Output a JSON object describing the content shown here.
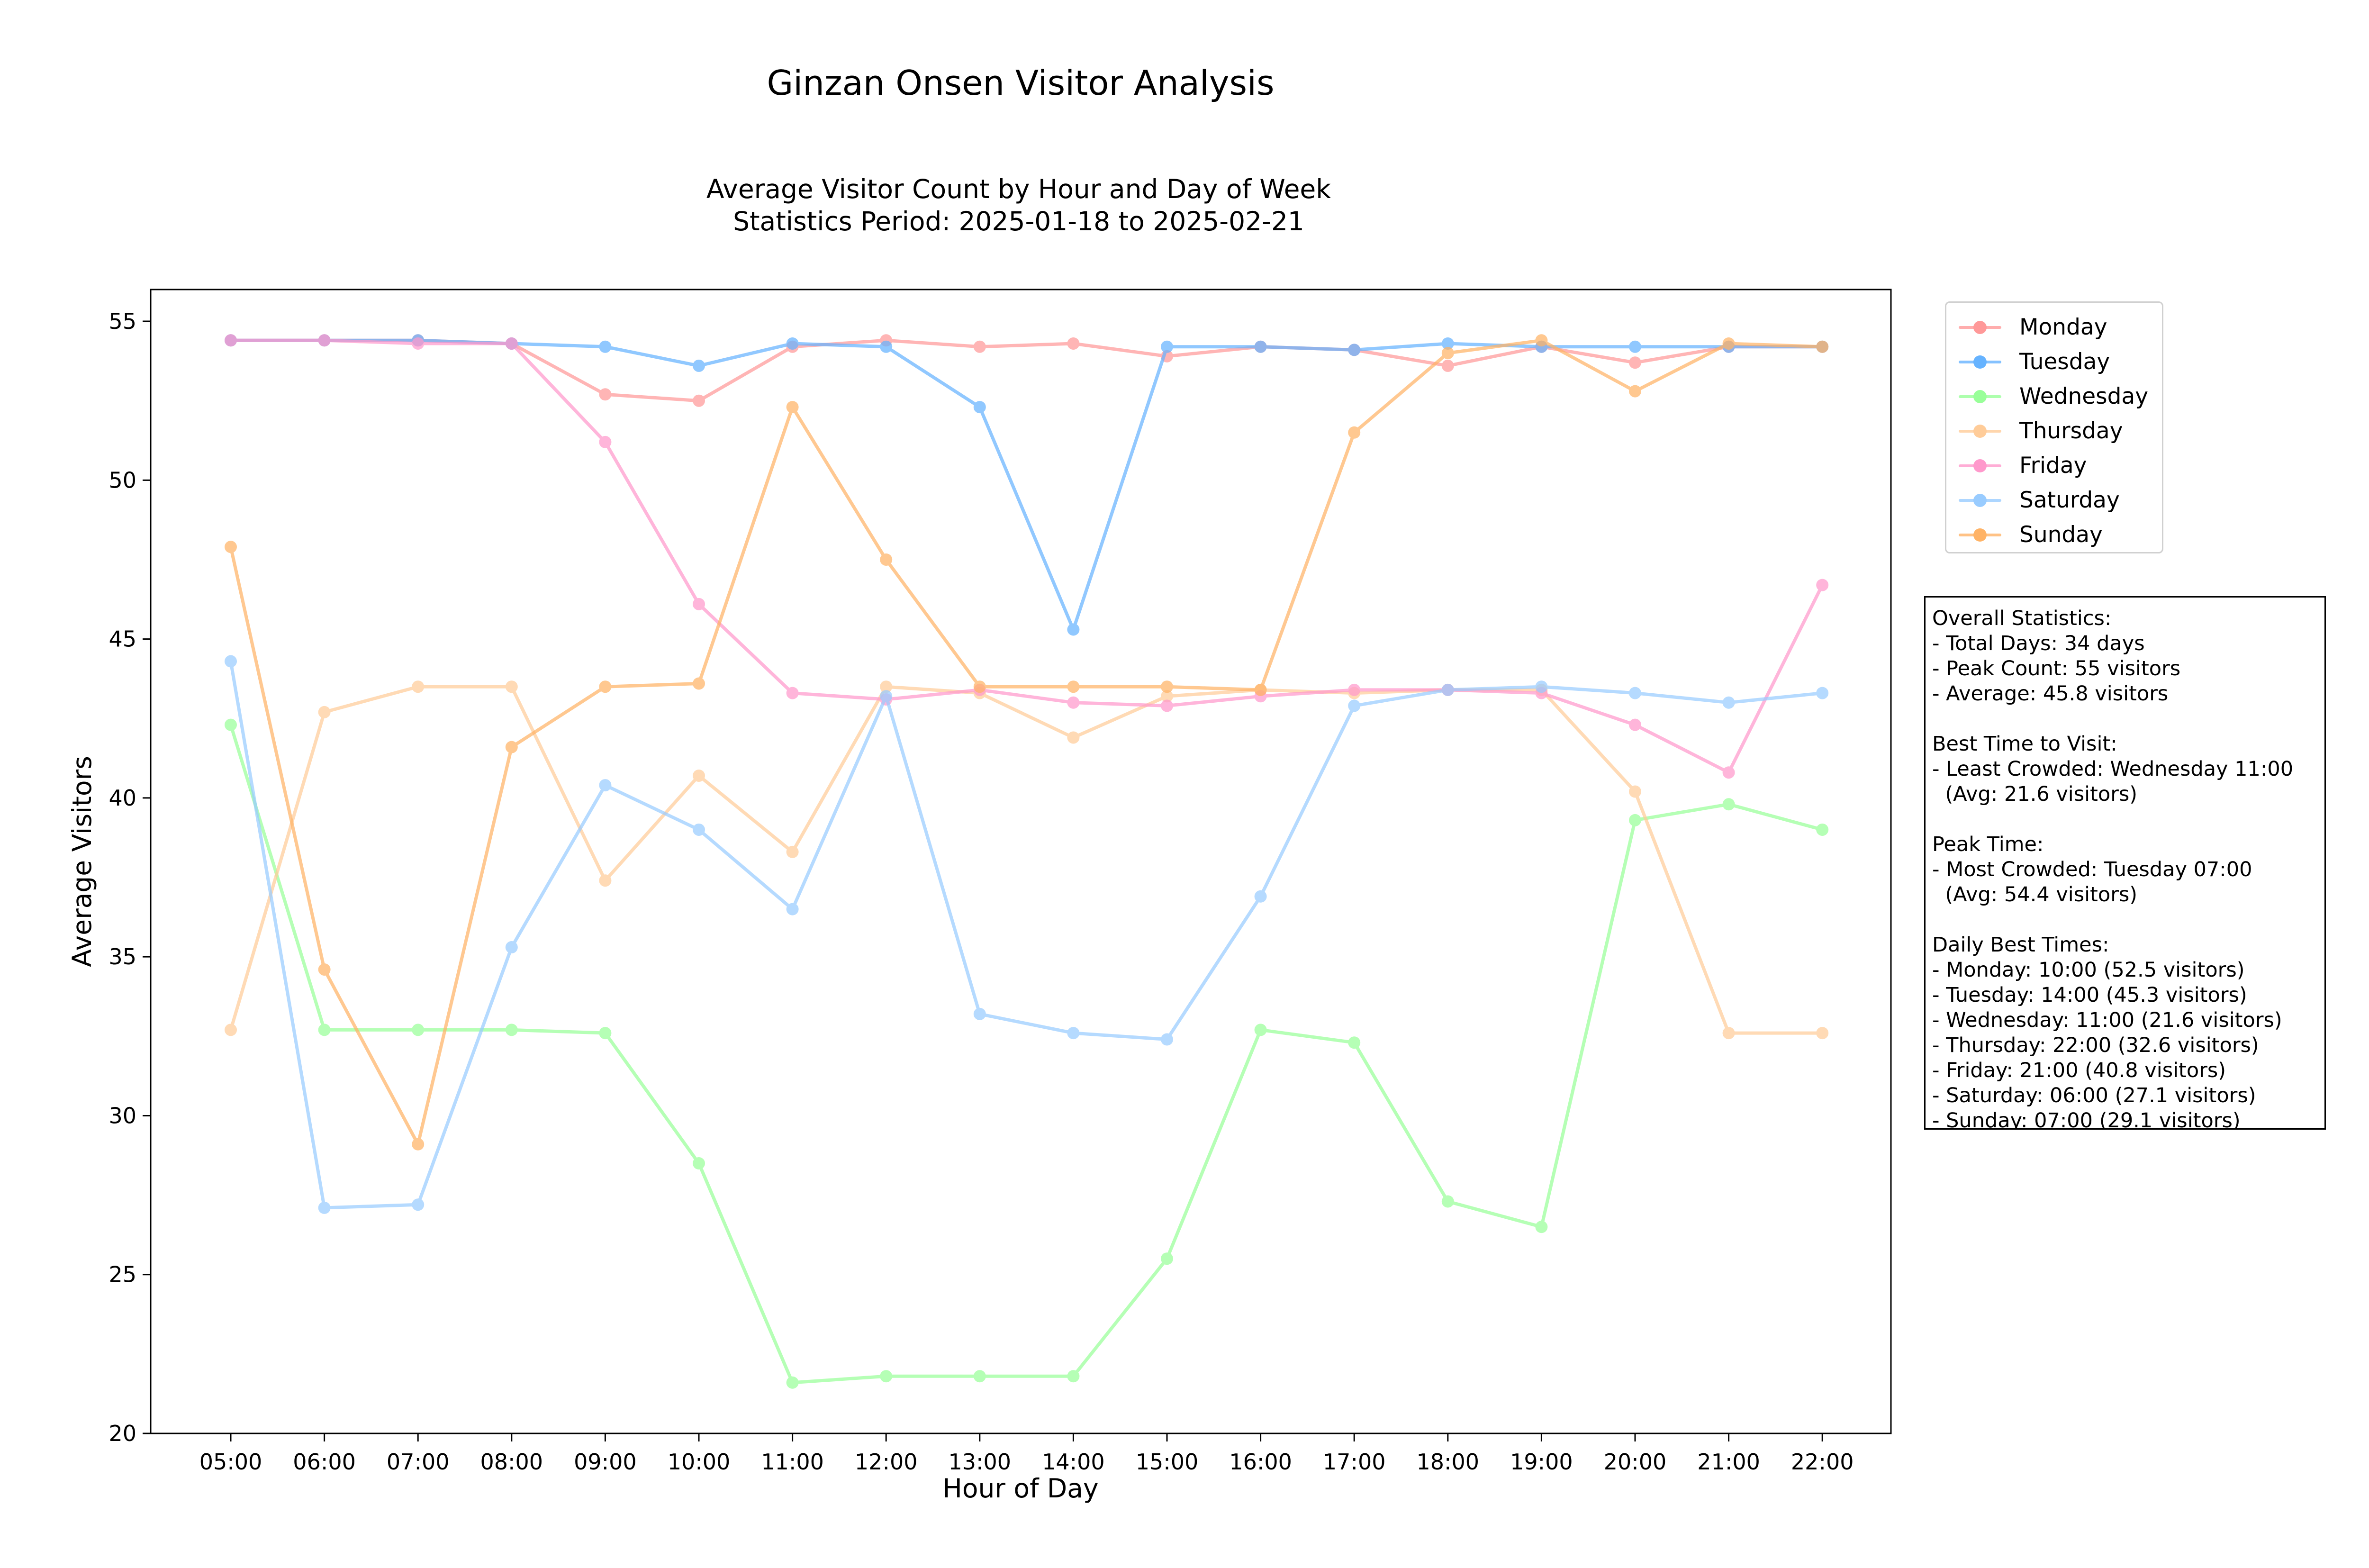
{
  "figure": {
    "suptitle": "Ginzan Onsen Visitor Analysis"
  },
  "chart_data": {
    "type": "line",
    "title": "Average Visitor Count by Hour and Day of Week\nStatistics Period: 2025-01-18 to 2025-02-21",
    "xlabel": "Hour of Day",
    "ylabel": "Average Visitors",
    "ylim": [
      20,
      56
    ],
    "yticks": [
      20,
      25,
      30,
      35,
      40,
      45,
      50,
      55
    ],
    "grid": false,
    "legend_position": "outside-top-right",
    "categories": [
      "05:00",
      "06:00",
      "07:00",
      "08:00",
      "09:00",
      "10:00",
      "11:00",
      "12:00",
      "13:00",
      "14:00",
      "15:00",
      "16:00",
      "17:00",
      "18:00",
      "19:00",
      "20:00",
      "21:00",
      "22:00"
    ],
    "series": [
      {
        "name": "Monday",
        "color": "#ff9999",
        "values": [
          54.4,
          54.4,
          54.4,
          54.3,
          52.7,
          52.5,
          54.2,
          54.4,
          54.2,
          54.3,
          53.9,
          54.2,
          54.1,
          53.6,
          54.2,
          53.7,
          54.2,
          54.2
        ]
      },
      {
        "name": "Tuesday",
        "color": "#66b3ff",
        "values": [
          54.4,
          54.4,
          54.4,
          54.3,
          54.2,
          53.6,
          54.3,
          54.2,
          52.3,
          45.3,
          54.2,
          54.2,
          54.1,
          54.3,
          54.2,
          54.2,
          54.2,
          54.2
        ]
      },
      {
        "name": "Wednesday",
        "color": "#99ff99",
        "values": [
          42.3,
          32.7,
          32.7,
          32.7,
          32.6,
          28.5,
          21.6,
          21.8,
          21.8,
          21.8,
          25.5,
          32.7,
          32.3,
          27.3,
          26.5,
          39.3,
          39.8,
          39.0
        ]
      },
      {
        "name": "Thursday",
        "color": "#ffcc99",
        "values": [
          32.7,
          42.7,
          43.5,
          43.5,
          37.4,
          40.7,
          38.3,
          43.5,
          43.3,
          41.9,
          43.2,
          43.4,
          43.3,
          43.4,
          43.4,
          40.2,
          32.6,
          32.6
        ]
      },
      {
        "name": "Friday",
        "color": "#ff99cc",
        "values": [
          54.4,
          54.4,
          54.3,
          54.3,
          51.2,
          46.1,
          43.3,
          43.1,
          43.4,
          43.0,
          42.9,
          43.2,
          43.4,
          43.4,
          43.3,
          42.3,
          40.8,
          46.7
        ]
      },
      {
        "name": "Saturday",
        "color": "#99ccff",
        "values": [
          44.3,
          27.1,
          27.2,
          35.3,
          40.4,
          39.0,
          36.5,
          43.2,
          33.2,
          32.6,
          32.4,
          36.9,
          42.9,
          43.4,
          43.5,
          43.3,
          43.0,
          43.3
        ]
      },
      {
        "name": "Sunday",
        "color": "#ffb366",
        "values": [
          47.9,
          34.6,
          29.1,
          41.6,
          43.5,
          43.6,
          52.3,
          47.5,
          43.5,
          43.5,
          43.5,
          43.4,
          51.5,
          54.0,
          54.4,
          52.8,
          54.3,
          54.2
        ]
      }
    ]
  },
  "stats_box": {
    "text": "Overall Statistics:\n- Total Days: 34 days\n- Peak Count: 55 visitors\n- Average: 45.8 visitors\n\nBest Time to Visit:\n- Least Crowded: Wednesday 11:00\n  (Avg: 21.6 visitors)\n\nPeak Time:\n- Most Crowded: Tuesday 07:00\n  (Avg: 54.4 visitors)\n\nDaily Best Times:\n- Monday: 10:00 (52.5 visitors)\n- Tuesday: 14:00 (45.3 visitors)\n- Wednesday: 11:00 (21.6 visitors)\n- Thursday: 22:00 (32.6 visitors)\n- Friday: 21:00 (40.8 visitors)\n- Saturday: 06:00 (27.1 visitors)\n- Sunday: 07:00 (29.1 visitors)"
  }
}
